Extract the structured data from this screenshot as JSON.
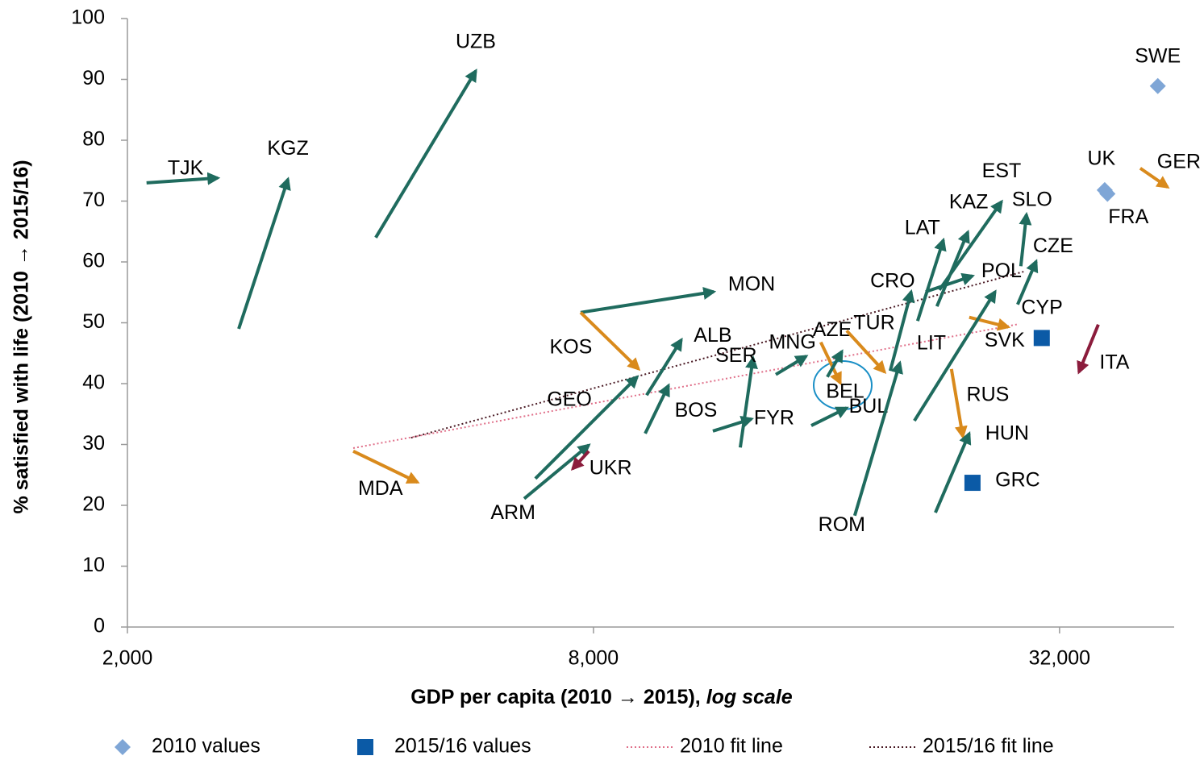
{
  "chart_data": {
    "type": "arrow-scatter",
    "xlabel": "GDP per capita (2010  → 2015),",
    "xlabel_note": "log scale",
    "ylabel": "% satisfied with life (2010 → 2015/16)",
    "xscale": "log",
    "xlim": [
      2000,
      45000
    ],
    "xticks": [
      {
        "value": 2000,
        "label": "2,000"
      },
      {
        "value": 8000,
        "label": "8,000"
      },
      {
        "value": 32000,
        "label": "32,000"
      }
    ],
    "ylim": [
      0,
      100
    ],
    "yticks": [
      0,
      10,
      20,
      30,
      40,
      50,
      60,
      70,
      80,
      90,
      100
    ],
    "arrows": [
      {
        "name": "TJK",
        "color": "#1f6b5e",
        "x0": 2117,
        "y0": 73.0,
        "x1": 2617,
        "y1": 73.8
      },
      {
        "name": "KGZ",
        "color": "#1f6b5e",
        "x0": 2785,
        "y0": 49.0,
        "x1": 3224,
        "y1": 73.6
      },
      {
        "name": "UZB",
        "color": "#1f6b5e",
        "x0": 4186,
        "y0": 64.0,
        "x1": 5637,
        "y1": 91.4
      },
      {
        "name": "MON",
        "color": "#1f6b5e",
        "x0": 7700,
        "y0": 51.7,
        "x1": 11440,
        "y1": 55.1
      },
      {
        "name": "KOS",
        "color": "#d98a1c",
        "x0": 7700,
        "y0": 51.7,
        "x1": 9150,
        "y1": 42.4
      },
      {
        "name": "ALB",
        "color": "#1f6b5e",
        "x0": 9370,
        "y0": 38.1,
        "x1": 10390,
        "y1": 47.2
      },
      {
        "name": "GEO",
        "color": "#1f6b5e",
        "x0": 6730,
        "y0": 24.4,
        "x1": 9110,
        "y1": 41.1
      },
      {
        "name": "ARM",
        "color": "#1f6b5e",
        "x0": 6510,
        "y0": 21.1,
        "x1": 7890,
        "y1": 29.9
      },
      {
        "name": "UKR",
        "color": "#8b1c3c",
        "x0": 7890,
        "y0": 28.9,
        "x1": 7520,
        "y1": 26.0
      },
      {
        "name": "MDA",
        "color": "#d98a1c",
        "x0": 3915,
        "y0": 28.9,
        "x1": 4740,
        "y1": 23.8
      },
      {
        "name": "BOS",
        "color": "#1f6b5e",
        "x0": 9330,
        "y0": 31.8,
        "x1": 10000,
        "y1": 39.7
      },
      {
        "name": "SER",
        "color": "#1f6b5e",
        "x0": 12380,
        "y0": 29.5,
        "x1": 12860,
        "y1": 44.2
      },
      {
        "name": "FYR",
        "color": "#1f6b5e",
        "x0": 11410,
        "y0": 32.2,
        "x1": 12800,
        "y1": 34.2
      },
      {
        "name": "MNG",
        "color": "#1f6b5e",
        "x0": 13760,
        "y0": 41.5,
        "x1": 15060,
        "y1": 44.5
      },
      {
        "name": "AZE",
        "color": "#d98a1c",
        "x0": 15730,
        "y0": 46.8,
        "x1": 16670,
        "y1": 40.1
      },
      {
        "name": "BEL",
        "color": "#1f6b5e",
        "x0": 16040,
        "y0": 41.1,
        "x1": 16750,
        "y1": 45.3
      },
      {
        "name": "BUL",
        "color": "#1f6b5e",
        "x0": 15290,
        "y0": 33.1,
        "x1": 16990,
        "y1": 36.0
      },
      {
        "name": "TUR",
        "color": "#d98a1c",
        "x0": 16990,
        "y0": 48.7,
        "x1": 19020,
        "y1": 41.9
      },
      {
        "name": "ROM",
        "color": "#1f6b5e",
        "x0": 17400,
        "y0": 18.3,
        "x1": 19900,
        "y1": 43.4
      },
      {
        "name": "CRO",
        "color": "#1f6b5e",
        "x0": 19340,
        "y0": 42.1,
        "x1": 20580,
        "y1": 55.1
      },
      {
        "name": "LAT",
        "color": "#1f6b5e",
        "x0": 20980,
        "y0": 50.3,
        "x1": 22650,
        "y1": 63.6
      },
      {
        "name": "KAZ",
        "color": "#1f6b5e",
        "x0": 22220,
        "y0": 52.7,
        "x1": 24360,
        "y1": 64.9
      },
      {
        "name": "EST",
        "color": "#1f6b5e",
        "x0": 22380,
        "y0": 55.4,
        "x1": 26930,
        "y1": 69.9
      },
      {
        "name": "POL",
        "color": "#1f6b5e",
        "x0": 21490,
        "y0": 55.1,
        "x1": 24700,
        "y1": 57.7
      },
      {
        "name": "SLO",
        "color": "#1f6b5e",
        "x0": 28520,
        "y0": 59.3,
        "x1": 29000,
        "y1": 67.8
      },
      {
        "name": "CZE",
        "color": "#1f6b5e",
        "x0": 28250,
        "y0": 53.0,
        "x1": 29850,
        "y1": 60.1
      },
      {
        "name": "CYP",
        "color": "#d98a1c",
        "x0": 24460,
        "y0": 50.9,
        "x1": 27460,
        "y1": 49.3
      },
      {
        "name": "LIT",
        "color": "#1f6b5e",
        "x0": 20780,
        "y0": 33.9,
        "x1": 26420,
        "y1": 55.1
      },
      {
        "name": "RUS",
        "color": "#d98a1c",
        "x0": 23200,
        "y0": 42.4,
        "x1": 24000,
        "y1": 31.3
      },
      {
        "name": "HUN",
        "color": "#1f6b5e",
        "x0": 22120,
        "y0": 18.8,
        "x1": 24460,
        "y1": 31.8
      },
      {
        "name": "ITA",
        "color": "#8b1c3c",
        "x0": 35910,
        "y0": 49.7,
        "x1": 33900,
        "y1": 41.9
      },
      {
        "name": "GER",
        "color": "#d98a1c",
        "x0": 40680,
        "y0": 75.4,
        "x1": 44130,
        "y1": 72.3
      }
    ],
    "series": [
      {
        "name": "2010 values",
        "color": "#7fa6d6",
        "marker": "diamond",
        "points": [
          {
            "label": "SWE",
            "x": 42860,
            "y": 88.9
          },
          {
            "label": "UK",
            "x": 36600,
            "y": 71.8
          },
          {
            "label": "FRA",
            "x": 36900,
            "y": 71.2
          }
        ]
      },
      {
        "name": "2015/16 values",
        "color": "#0b5aa6",
        "marker": "square",
        "points": [
          {
            "label": "GRC",
            "x": 24700,
            "y": 23.7
          },
          {
            "label": "SVK",
            "x": 30350,
            "y": 47.5
          }
        ]
      }
    ],
    "fit_lines": [
      {
        "name": "2010 fit line",
        "color": "#e0708a",
        "x": [
          3915,
          28380
        ],
        "y": [
          29.4,
          49.8
        ]
      },
      {
        "name": "2015/16 fit line",
        "color": "#4a1a24",
        "x": [
          4650,
          28940
        ],
        "y": [
          31.1,
          58.5
        ]
      }
    ]
  }
}
